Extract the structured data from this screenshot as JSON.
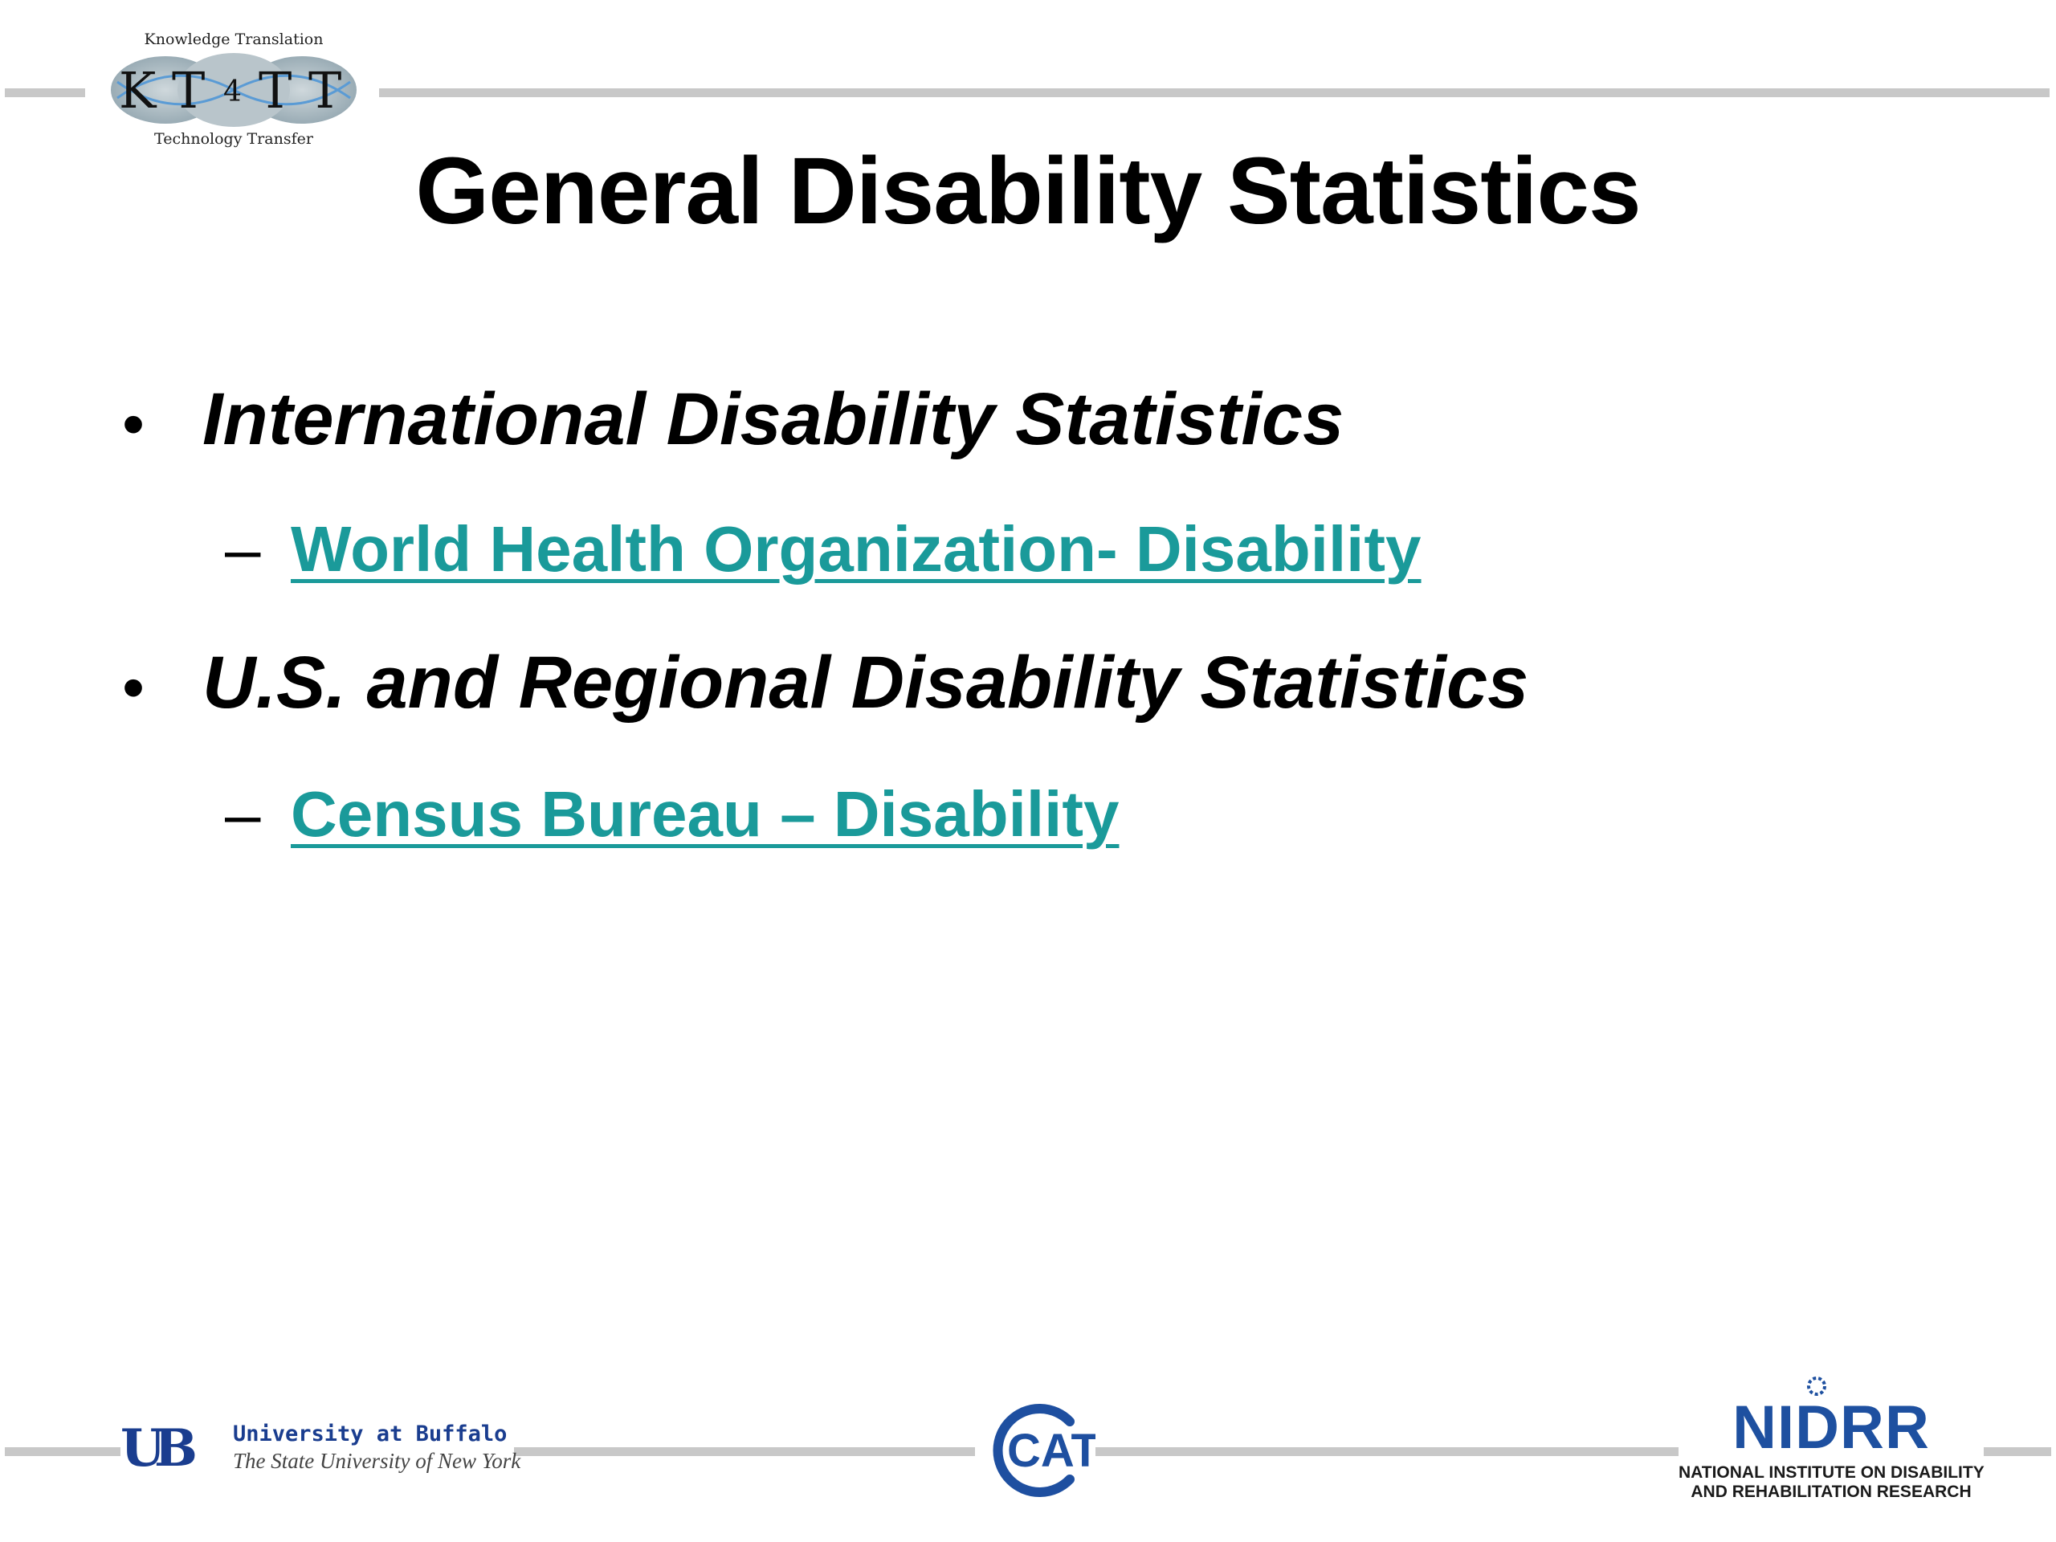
{
  "header": {
    "logo": {
      "top_text": "Knowledge Translation",
      "mark_letters": [
        "K",
        "T",
        "4",
        "T",
        "T"
      ],
      "bottom_text": "Technology Transfer"
    },
    "title": "General Disability Statistics"
  },
  "content": {
    "bullets": [
      {
        "marker": "•",
        "text": "International Disability Statistics",
        "sub": {
          "marker": "–",
          "link_text": "World Health Organization- Disability"
        }
      },
      {
        "marker": "•",
        "text": "U.S. and Regional Disability Statistics",
        "sub": {
          "marker": "–",
          "link_text": "Census Bureau – Disability"
        }
      }
    ],
    "link_color": "#1a9a9a"
  },
  "footer": {
    "ub": {
      "mark": "UB",
      "name": "University at Buffalo",
      "subtitle": "The State University of New York"
    },
    "cat": {
      "mark": "CAT"
    },
    "nidrr": {
      "name": "NIDRR",
      "subtitle_line1": "NATIONAL INSTITUTE ON DISABILITY",
      "subtitle_line2": "AND REHABILITATION RESEARCH"
    }
  }
}
